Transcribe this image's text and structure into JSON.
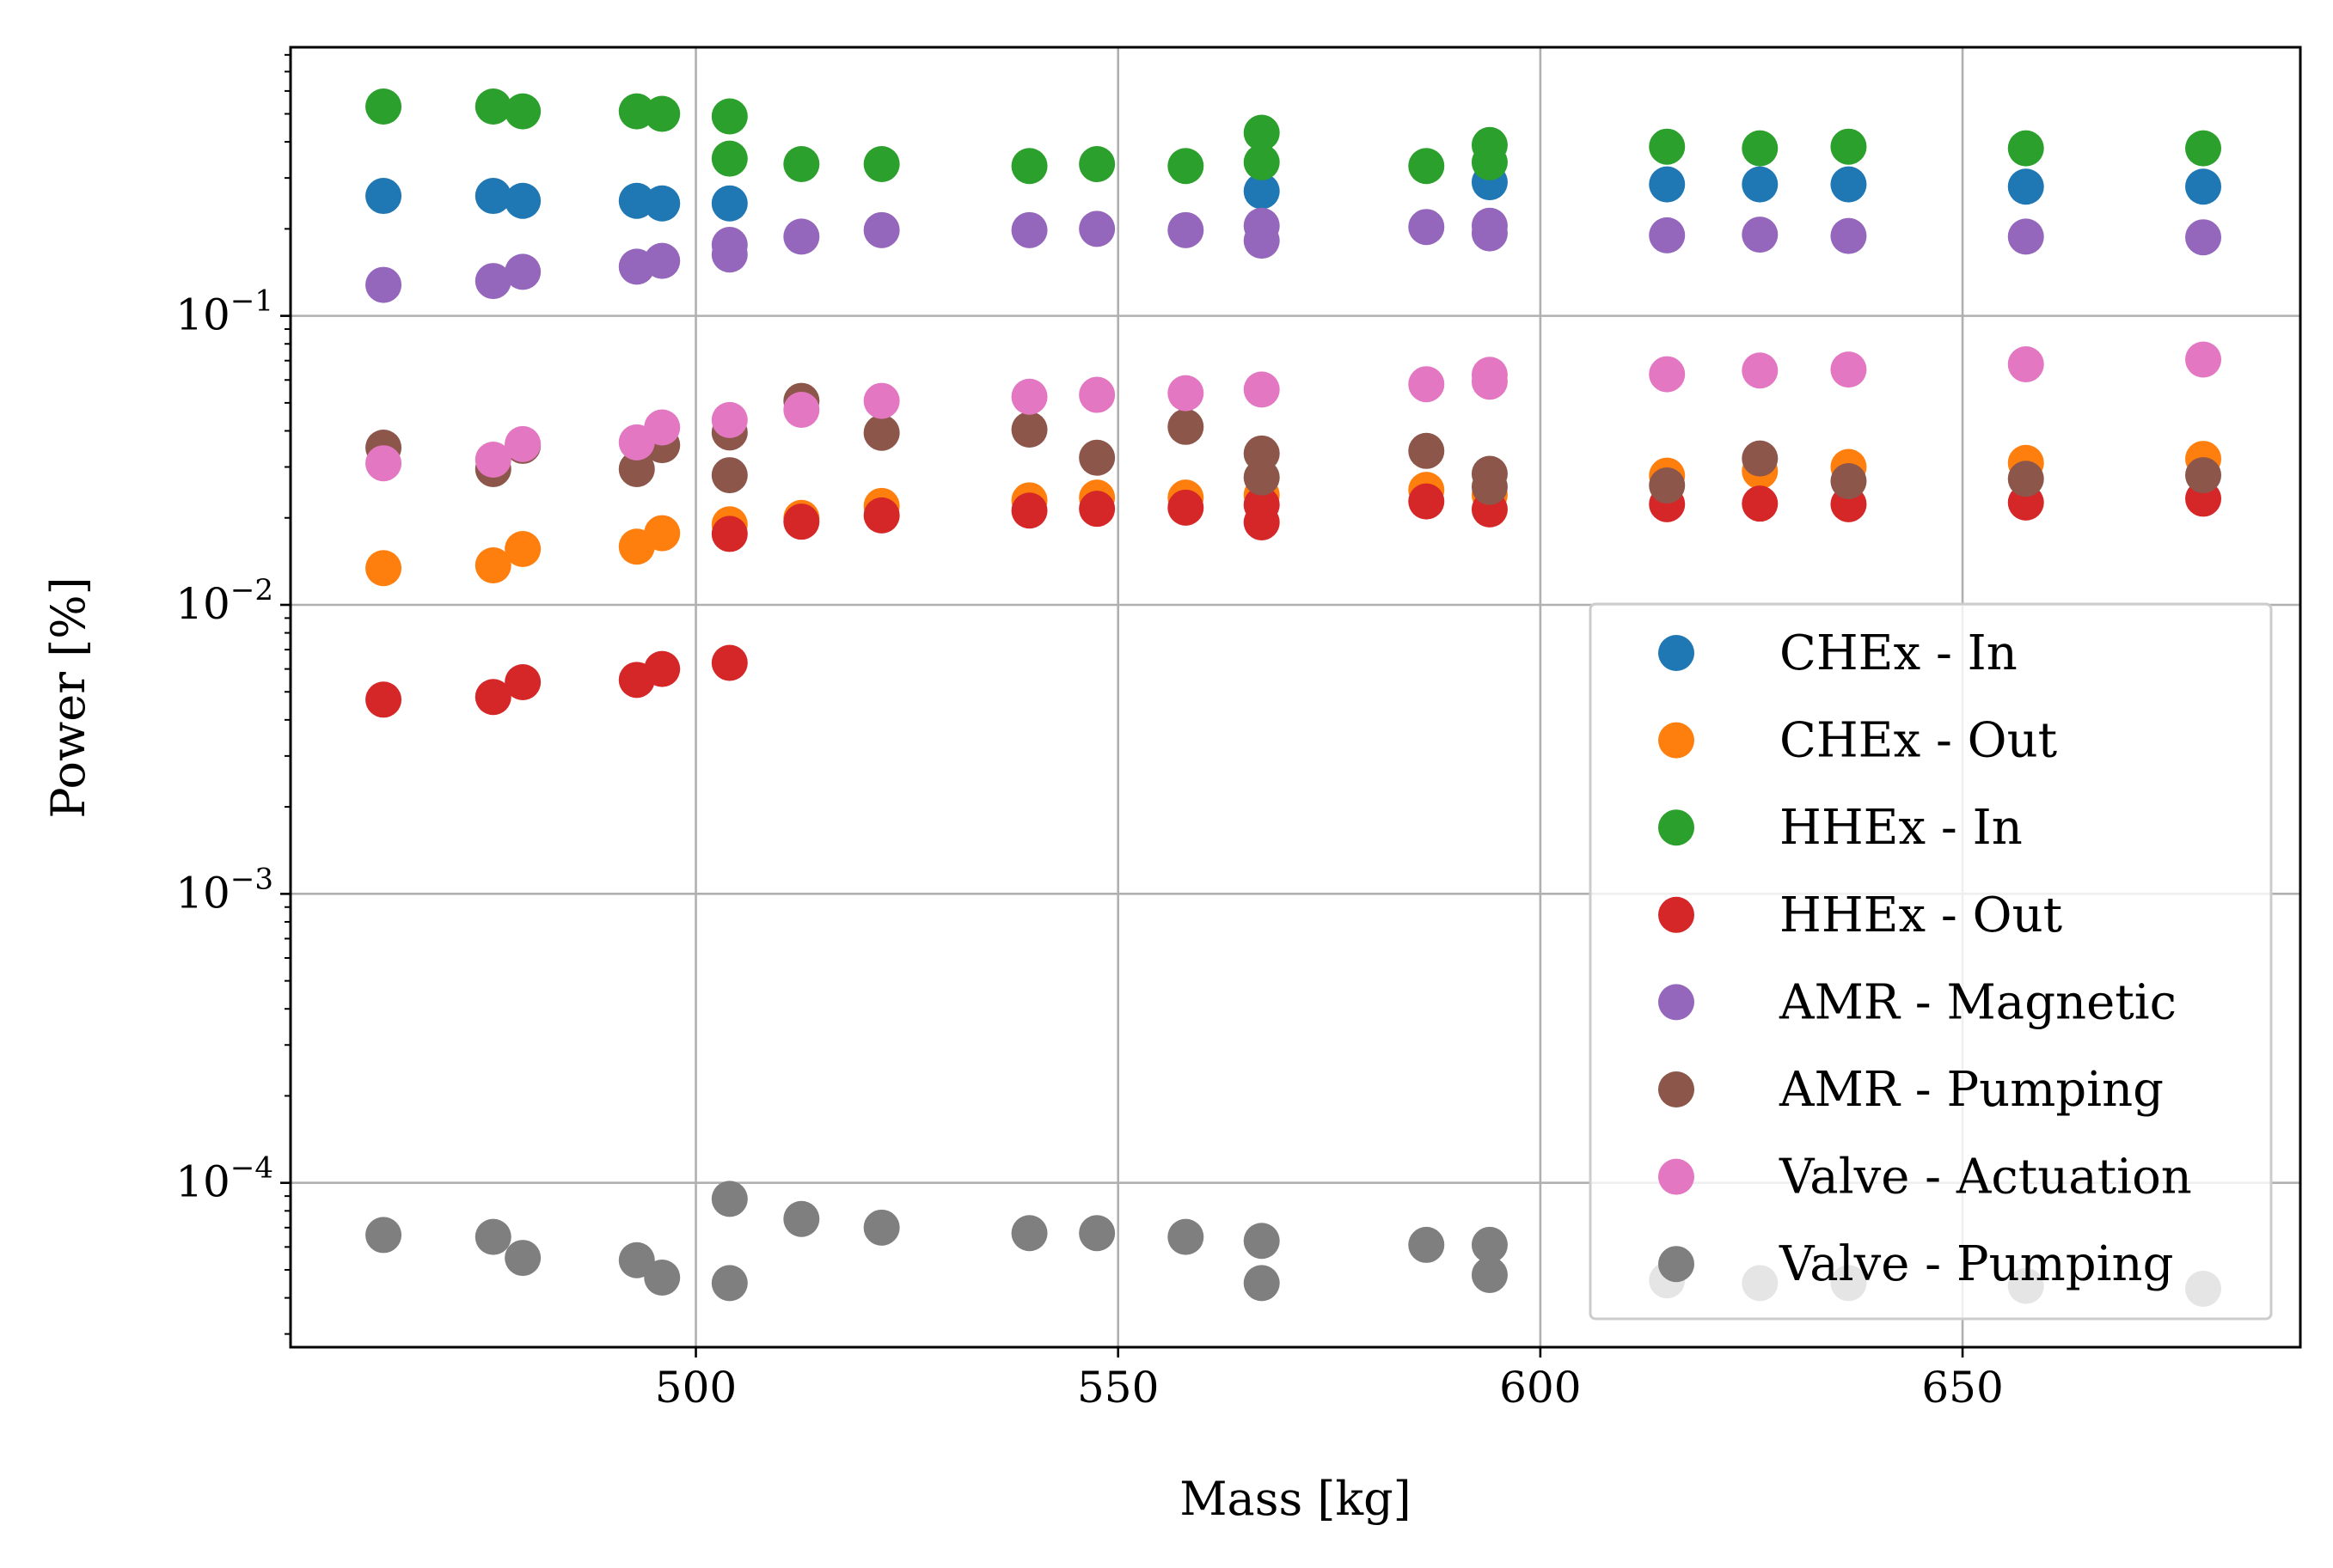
{
  "chart_data": {
    "type": "scatter",
    "xlabel": "Mass [kg]",
    "ylabel": "Power [%]",
    "xlim": [
      452,
      690
    ],
    "ylim": [
      2.7e-05,
      0.85
    ],
    "y_scale": "log",
    "grid": true,
    "legend_position": "lower right",
    "x_ticks": [
      {
        "value": 500,
        "label": "500"
      },
      {
        "value": 550,
        "label": "550"
      },
      {
        "value": 600,
        "label": "600"
      },
      {
        "value": 650,
        "label": "650"
      }
    ],
    "y_ticks": [
      {
        "value": 0.0001,
        "base": "10",
        "exp": "−4"
      },
      {
        "value": 0.001,
        "base": "10",
        "exp": "−3"
      },
      {
        "value": 0.01,
        "base": "10",
        "exp": "−2"
      },
      {
        "value": 0.1,
        "base": "10",
        "exp": "−1"
      }
    ],
    "x": [
      463,
      476,
      479.5,
      493,
      496,
      504,
      504,
      512.5,
      522,
      539.5,
      547.5,
      558,
      567,
      567,
      586.5,
      594,
      594,
      615,
      626,
      636.5,
      657.5,
      678.5
    ],
    "series": [
      {
        "name": "CHEx - In",
        "color": "#1f77b4",
        "values": [
          0.26,
          0.26,
          0.25,
          0.25,
          0.245,
          0.245,
          null,
          null,
          null,
          null,
          null,
          null,
          0.27,
          null,
          null,
          0.29,
          null,
          0.285,
          0.285,
          0.285,
          0.28,
          0.28
        ]
      },
      {
        "name": "CHEx - Out",
        "color": "#ff7f0e",
        "values": [
          0.0134,
          0.0137,
          0.0156,
          0.0159,
          0.0177,
          0.019,
          null,
          0.02,
          0.022,
          0.023,
          0.0235,
          0.0235,
          0.024,
          null,
          0.025,
          0.024,
          null,
          0.028,
          0.029,
          0.03,
          0.031,
          0.032
        ]
      },
      {
        "name": "HHEx - In",
        "color": "#2ca02c",
        "values": [
          0.53,
          0.53,
          0.51,
          0.51,
          0.5,
          0.49,
          0.35,
          0.335,
          0.335,
          0.33,
          0.335,
          0.33,
          0.43,
          0.34,
          0.33,
          0.39,
          0.34,
          0.385,
          0.38,
          0.385,
          0.38,
          0.38
        ]
      },
      {
        "name": "HHEx - Out",
        "color": "#d62728",
        "values": [
          0.0047,
          0.0048,
          0.0054,
          0.0055,
          0.006,
          0.0063,
          0.0176,
          0.0194,
          0.0204,
          0.0212,
          0.0215,
          0.0217,
          0.0222,
          0.0193,
          0.0228,
          0.0214,
          null,
          0.0223,
          0.0224,
          0.0223,
          0.0226,
          0.0233
        ]
      },
      {
        "name": "AMR - Magnetic",
        "color": "#9467bd",
        "values": [
          0.128,
          0.132,
          0.142,
          0.148,
          0.155,
          0.176,
          0.163,
          0.188,
          0.198,
          0.198,
          0.2,
          0.198,
          0.205,
          0.182,
          0.203,
          0.205,
          0.193,
          0.19,
          0.191,
          0.189,
          0.188,
          0.187
        ]
      },
      {
        "name": "AMR - Pumping",
        "color": "#8c564b",
        "values": [
          0.035,
          0.0295,
          0.0355,
          0.0295,
          0.0357,
          0.0395,
          0.0281,
          0.0508,
          0.0394,
          0.0404,
          0.0323,
          0.0413,
          0.0334,
          0.0276,
          0.0341,
          0.0284,
          0.0256,
          0.0259,
          0.0321,
          0.0268,
          0.0273,
          0.0281
        ]
      },
      {
        "name": "Valve - Actuation",
        "color": "#e377c2",
        "values": [
          0.0309,
          0.0318,
          0.036,
          0.0365,
          0.0411,
          0.0436,
          null,
          0.0473,
          0.0508,
          0.0525,
          0.0533,
          0.054,
          0.0556,
          null,
          0.058,
          0.0625,
          0.0592,
          0.0628,
          0.0647,
          0.0652,
          0.068,
          0.0706
        ]
      },
      {
        "name": "Valve - Pumping",
        "color": "#7f7f7f",
        "values": [
          6.6e-05,
          6.5e-05,
          5.5e-05,
          5.4e-05,
          4.7e-05,
          8.8e-05,
          4.5e-05,
          7.5e-05,
          7e-05,
          6.7e-05,
          6.7e-05,
          6.5e-05,
          6.3e-05,
          4.5e-05,
          6.1e-05,
          6.1e-05,
          4.8e-05,
          4.6e-05,
          4.5e-05,
          4.5e-05,
          4.4e-05,
          4.3e-05
        ]
      }
    ]
  }
}
